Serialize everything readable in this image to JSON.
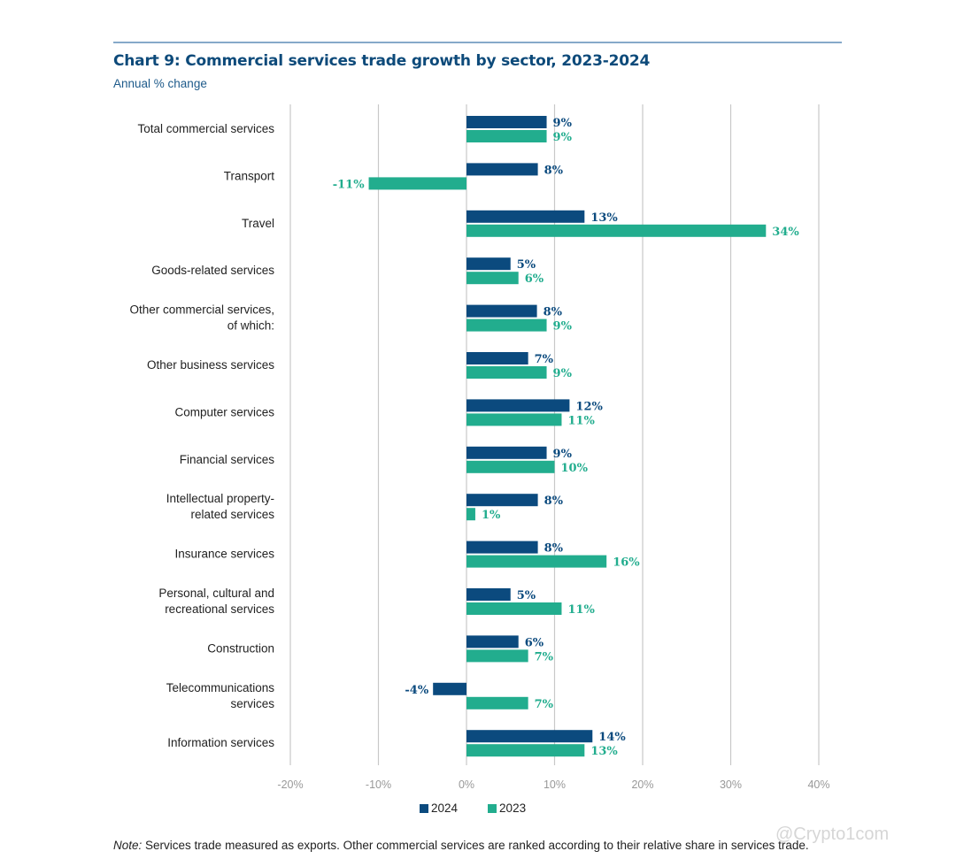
{
  "header": {
    "title": "Chart 9: Commercial services trade growth by sector, 2023-2024",
    "subtitle": "Annual % change"
  },
  "colors": {
    "series_2024": "#0b4a7e",
    "series_2023": "#22ad8e",
    "rule": "#86a9c9",
    "grid": "#c8c8c8",
    "title": "#0d4a7a"
  },
  "chart_data": {
    "type": "bar",
    "orientation": "horizontal",
    "title": "Chart 9: Commercial services trade growth by sector, 2023-2024",
    "subtitle": "Annual % change",
    "xlabel": "",
    "ylabel": "",
    "xlim": [
      -20,
      40
    ],
    "x_ticks": [
      -20,
      -10,
      0,
      10,
      20,
      30,
      40
    ],
    "x_tick_labels": [
      "-20%",
      "-10%",
      "0%",
      "10%",
      "20%",
      "30%",
      "40%"
    ],
    "grid": true,
    "legend_position": "bottom-center",
    "categories": [
      [
        "Total commercial services"
      ],
      [
        "Transport"
      ],
      [
        "Travel"
      ],
      [
        "Goods-related services"
      ],
      [
        "Other commercial services,",
        "of which:"
      ],
      [
        "Other business services"
      ],
      [
        "Computer services"
      ],
      [
        "Financial services"
      ],
      [
        "Intellectual property-",
        "related services"
      ],
      [
        "Insurance services"
      ],
      [
        "Personal, cultural and",
        "recreational services"
      ],
      [
        "Construction"
      ],
      [
        "Telecommunications",
        "services"
      ],
      [
        "Information services"
      ]
    ],
    "series": [
      {
        "name": "2024",
        "values": [
          9.1,
          8.1,
          13.4,
          5.0,
          8.0,
          7.0,
          11.7,
          9.1,
          8.1,
          8.1,
          5.0,
          5.9,
          -3.8,
          14.3
        ],
        "labels": [
          "9%",
          "8%",
          "13%",
          "5%",
          "8%",
          "7%",
          "12%",
          "9%",
          "8%",
          "8%",
          "5%",
          "6%",
          "-4%",
          "14%"
        ]
      },
      {
        "name": "2023",
        "values": [
          9.1,
          -11.1,
          34.0,
          5.9,
          9.1,
          9.1,
          10.8,
          10.0,
          1.0,
          15.9,
          10.8,
          7.0,
          7.0,
          13.4
        ],
        "labels": [
          "9%",
          "-11%",
          "34%",
          "6%",
          "9%",
          "9%",
          "11%",
          "10%",
          "1%",
          "16%",
          "11%",
          "7%",
          "7%",
          "13%"
        ]
      }
    ]
  },
  "legend": {
    "items": [
      {
        "label": "2024"
      },
      {
        "label": "2023"
      }
    ]
  },
  "footer": {
    "note_label": "Note:",
    "note_text": " Services trade measured as exports. Other commercial services are ranked according to their relative share in services trade.",
    "watermark": "@Crypto1com"
  }
}
